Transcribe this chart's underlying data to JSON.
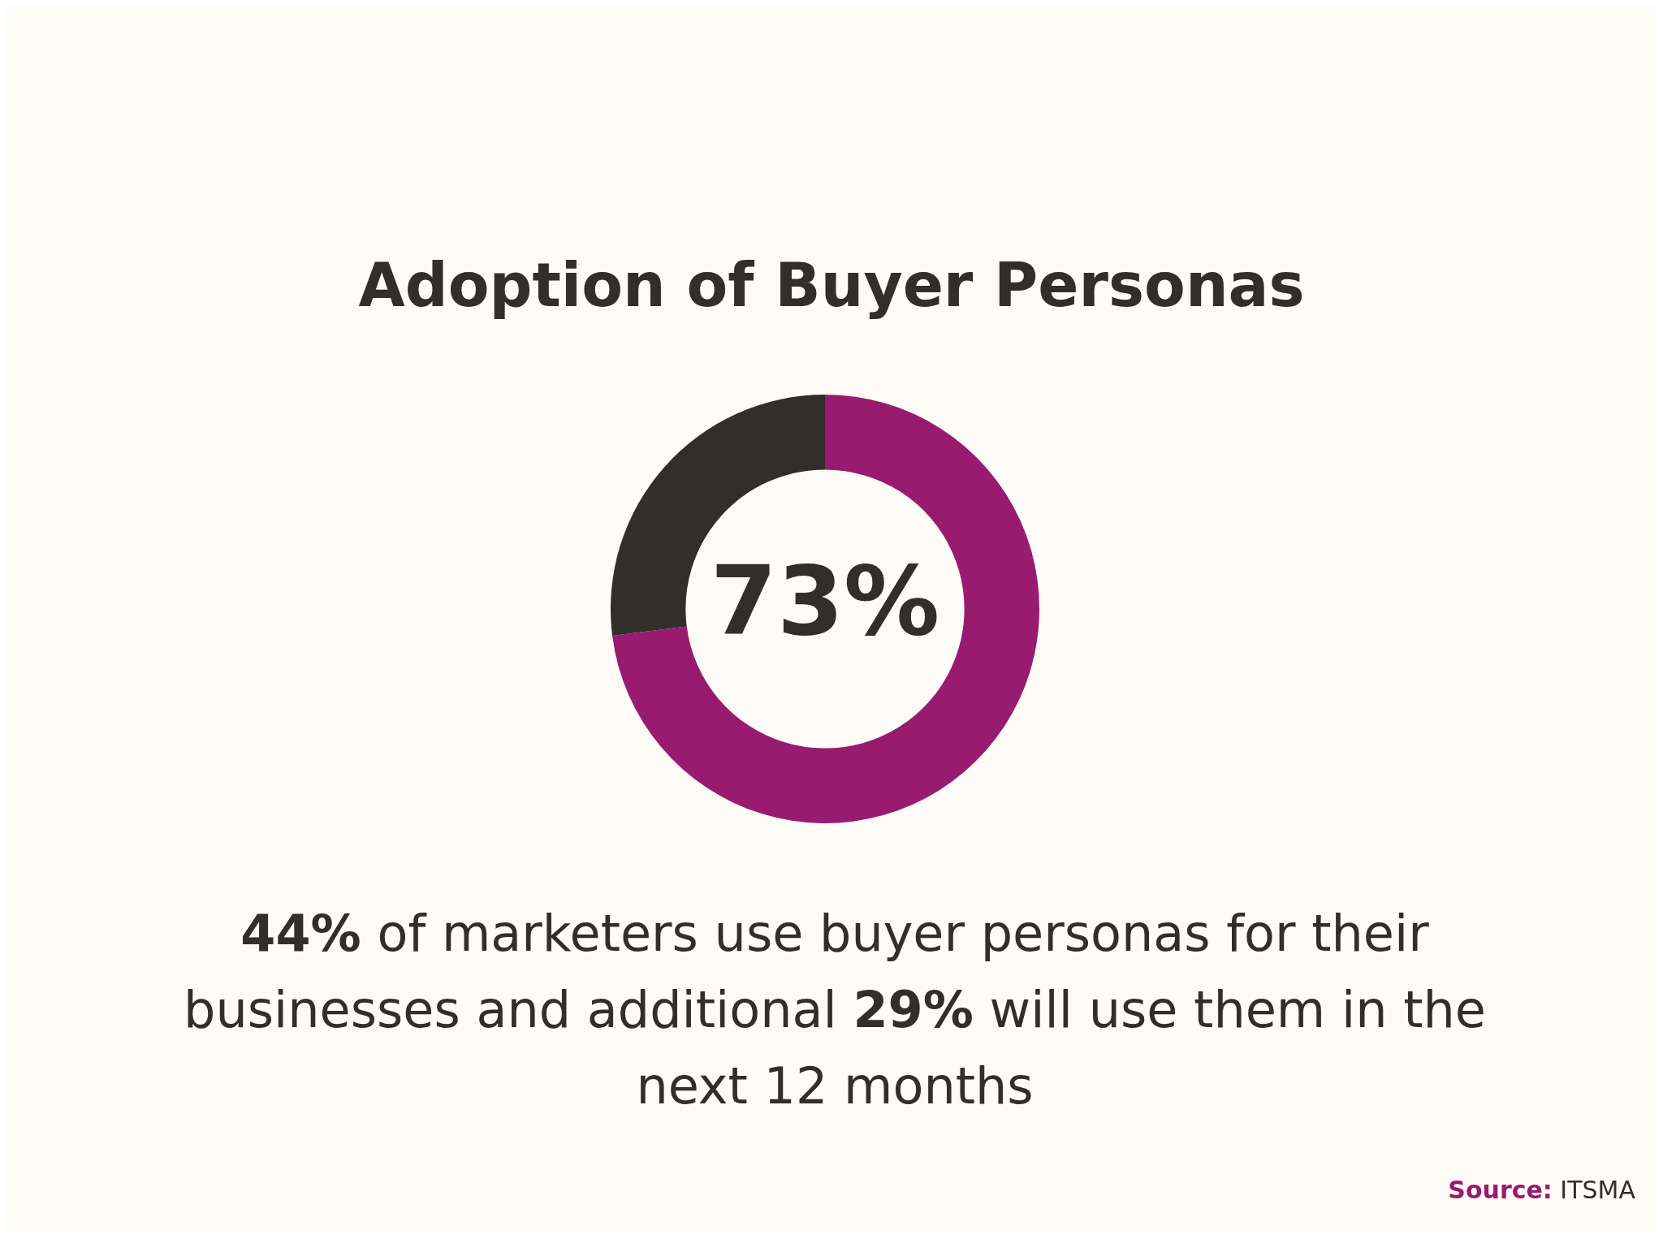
{
  "chart_data": {
    "type": "donut",
    "title": "Adoption of Buyer Personas",
    "categories": [
      null,
      null
    ],
    "values": [
      73,
      27
    ],
    "colors": [
      "#981b6f",
      "#312e2c"
    ],
    "annotations": [
      "73%",
      "44% of marketers use buyer personas for their businesses and additional 29% will use them in the next 12 months",
      "Source: ITSMA"
    ],
    "legend": false
  }
}
